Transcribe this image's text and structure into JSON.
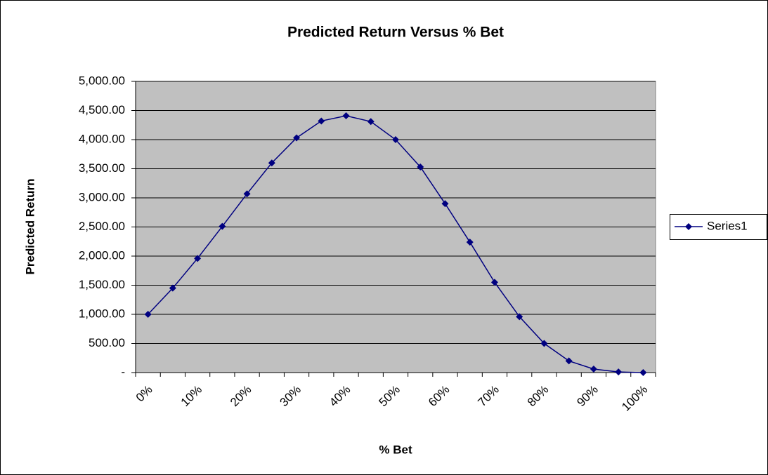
{
  "chart_data": {
    "type": "line",
    "title": "Predicted Return Versus % Bet",
    "x_label": "% Bet",
    "y_label": "Predicted Return",
    "categories": [
      "0%",
      null,
      "10%",
      null,
      "20%",
      null,
      "30%",
      null,
      "40%",
      null,
      "50%",
      null,
      "60%",
      null,
      "70%",
      null,
      "80%",
      null,
      "90%",
      null,
      "100%"
    ],
    "series": [
      {
        "name": "Series1",
        "color": "#000080",
        "values": [
          1000,
          1450,
          1960,
          2510,
          3070,
          3600,
          4030,
          4320,
          4410,
          4310,
          4000,
          3530,
          2900,
          2240,
          1550,
          960,
          500,
          200,
          60,
          10,
          0
        ]
      }
    ],
    "ylim": [
      0,
      5000
    ],
    "yticks": [
      {
        "value": 0,
        "label": "-"
      },
      {
        "value": 500,
        "label": "500.00"
      },
      {
        "value": 1000,
        "label": "1,000.00"
      },
      {
        "value": 1500,
        "label": "1,500.00"
      },
      {
        "value": 2000,
        "label": "2,000.00"
      },
      {
        "value": 2500,
        "label": "2,500.00"
      },
      {
        "value": 3000,
        "label": "3,000.00"
      },
      {
        "value": 3500,
        "label": "3,500.00"
      },
      {
        "value": 4000,
        "label": "4,000.00"
      },
      {
        "value": 4500,
        "label": "4,500.00"
      },
      {
        "value": 5000,
        "label": "5,000.00"
      }
    ],
    "grid": true,
    "legend": "right",
    "plot_background": "#c0c0c0"
  }
}
